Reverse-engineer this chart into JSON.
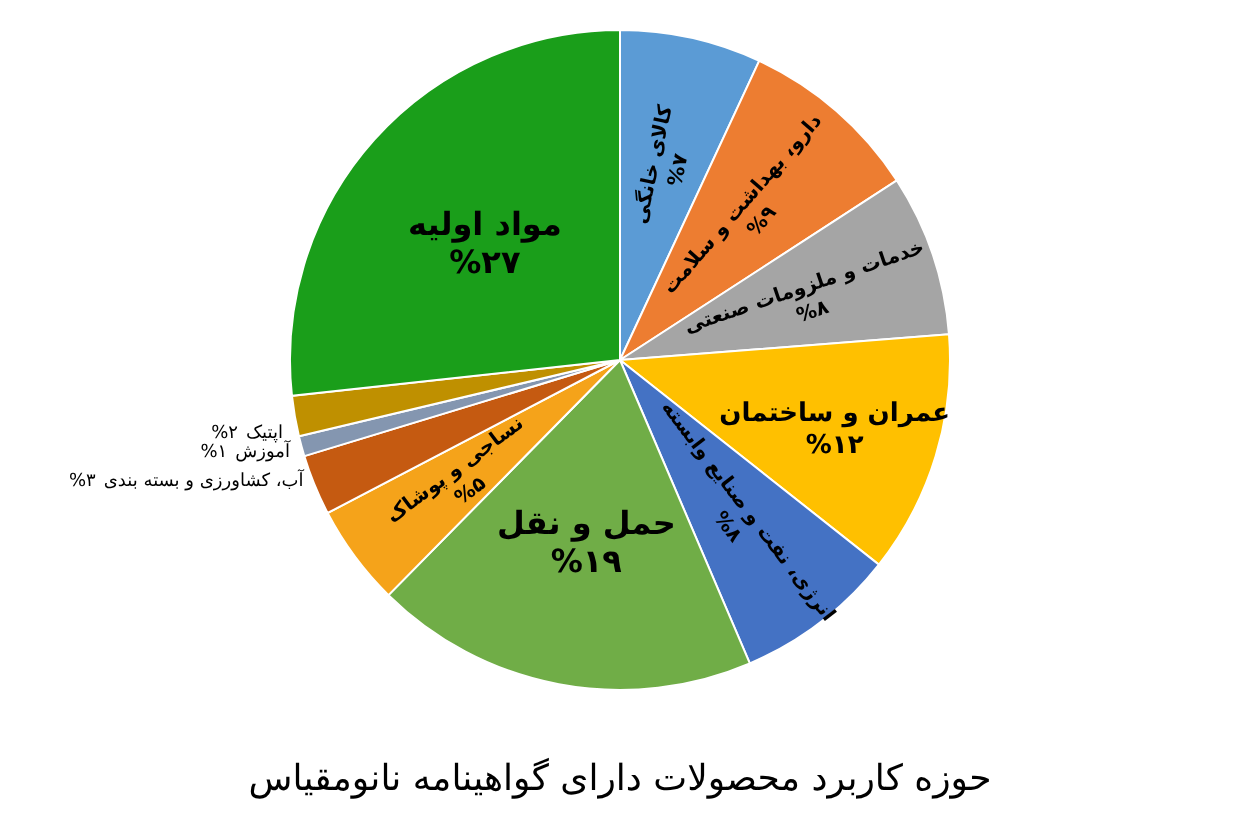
{
  "chart_data": {
    "type": "pie",
    "title": "حوزه کاربرد محصولات دارای گواهینامه نانومقیاس",
    "categories": [
      "کالای خانگی",
      "دارو، بهداشت و سلامت",
      "خدمات و ملزومات صنعتی",
      "عمران و ساختمان",
      "انرژی، نفت و صنایع وابسته",
      "حمل و نقل",
      "نساجی و پوشاک",
      "آب، کشاورزی و بسته بندی",
      "آموزش",
      "اپتیک",
      "مواد اولیه"
    ],
    "values": [
      7,
      9,
      8,
      12,
      8,
      19,
      5,
      3,
      1,
      2,
      27
    ],
    "value_labels": [
      "%۷",
      "%۹",
      "%۸",
      "%۱۲",
      "%۸",
      "%۱۹",
      "%۵",
      "%۳",
      "%۱",
      "%۲",
      "%۲۷"
    ],
    "colors": [
      "#5b9bd5",
      "#ed7d31",
      "#a5a5a5",
      "#ffc000",
      "#4472c4",
      "#70ad47",
      "#f5a31a",
      "#c55a11",
      "#8496b0",
      "#bf9000",
      "#1a9e1a"
    ],
    "legend": false
  }
}
